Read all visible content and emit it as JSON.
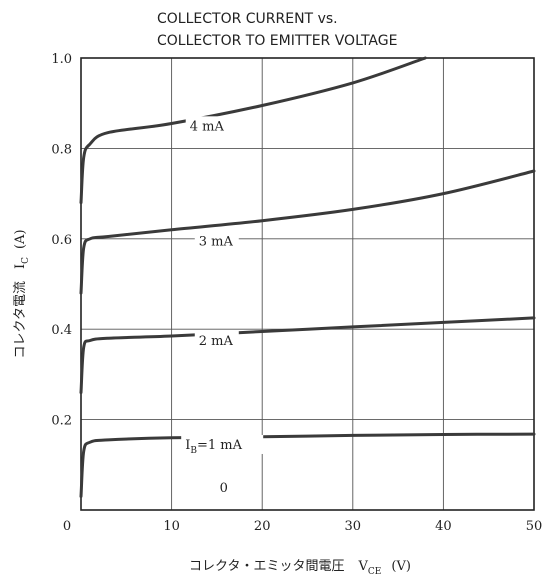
{
  "chart_data": {
    "type": "line",
    "title": [
      "COLLECTOR CURRENT vs.",
      "COLLECTOR TO EMITTER VOLTAGE"
    ],
    "xlabel": {
      "main": "コレクタ・エミッタ間電圧",
      "sym": "V",
      "sub": "CE",
      "unit": "(V)"
    },
    "ylabel": {
      "main": "コレクタ電流",
      "sym": "I",
      "sub": "C",
      "unit": "(A)"
    },
    "xlim": [
      0,
      50
    ],
    "ylim": [
      0,
      1.0
    ],
    "x_ticks": [
      "0",
      "10",
      "20",
      "30",
      "40",
      "50"
    ],
    "y_ticks": [
      "0.2",
      "0.4",
      "0.6",
      "0.8",
      "1.0"
    ],
    "grid": true,
    "series": [
      {
        "name": "4 mA",
        "points": [
          [
            0.3,
            0.78
          ],
          [
            1,
            0.81
          ],
          [
            3,
            0.835
          ],
          [
            10,
            0.855
          ],
          [
            20,
            0.895
          ],
          [
            30,
            0.945
          ],
          [
            38,
            1.0
          ]
        ]
      },
      {
        "name": "3 mA",
        "points": [
          [
            0.3,
            0.58
          ],
          [
            1,
            0.6
          ],
          [
            3,
            0.605
          ],
          [
            10,
            0.62
          ],
          [
            20,
            0.64
          ],
          [
            30,
            0.665
          ],
          [
            40,
            0.7
          ],
          [
            50,
            0.75
          ]
        ]
      },
      {
        "name": "2 mA",
        "points": [
          [
            0.3,
            0.36
          ],
          [
            1,
            0.375
          ],
          [
            3,
            0.38
          ],
          [
            10,
            0.385
          ],
          [
            20,
            0.395
          ],
          [
            30,
            0.405
          ],
          [
            40,
            0.415
          ],
          [
            50,
            0.425
          ]
        ]
      },
      {
        "name": "I_B=1 mA",
        "points": [
          [
            0.3,
            0.13
          ],
          [
            1,
            0.15
          ],
          [
            3,
            0.155
          ],
          [
            10,
            0.16
          ],
          [
            20,
            0.162
          ],
          [
            30,
            0.165
          ],
          [
            40,
            0.167
          ],
          [
            50,
            0.168
          ]
        ]
      }
    ],
    "annotations": [
      {
        "text": "4 mA",
        "x": 12,
        "y": 0.84
      },
      {
        "text": "3 mA",
        "x": 13,
        "y": 0.585
      },
      {
        "text": "2 mA",
        "x": 13,
        "y": 0.365
      },
      {
        "text": "=1 mA",
        "prefix": "I",
        "sub": "B",
        "x": 11.5,
        "y": 0.135
      },
      {
        "text": "0",
        "x": 15.3,
        "y": 0.04
      }
    ]
  }
}
